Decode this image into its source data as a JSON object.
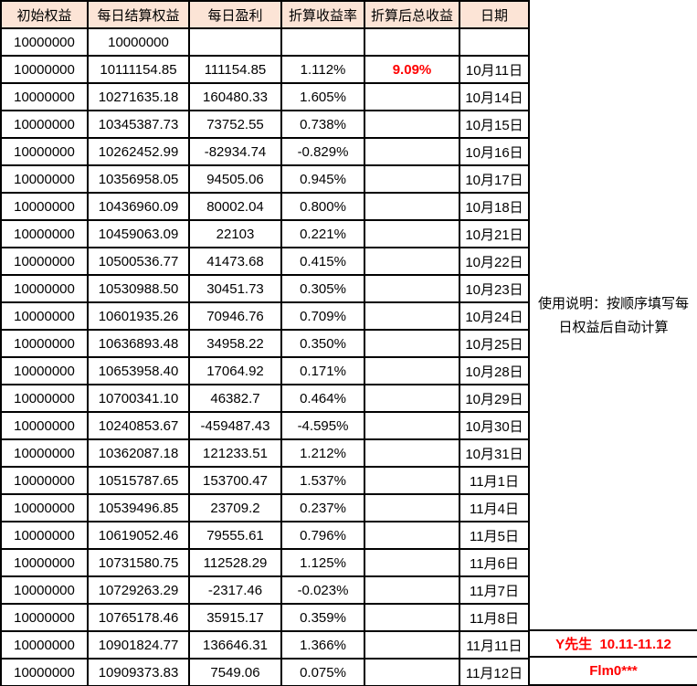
{
  "colors": {
    "header_bg": "#FCE4D6",
    "highlight_red": "#FF0000",
    "border": "#000000"
  },
  "table": {
    "headers": [
      "初始权益",
      "每日结算权益",
      "每日盈利",
      "折算收益率",
      "折算后总收益",
      "日期"
    ],
    "highlight": {
      "row": 1,
      "col": 4
    },
    "rows": [
      [
        "10000000",
        "10000000",
        "",
        "",
        "",
        ""
      ],
      [
        "10000000",
        "10111154.85",
        "111154.85",
        "1.112%",
        "9.09%",
        "10月11日"
      ],
      [
        "10000000",
        "10271635.18",
        "160480.33",
        "1.605%",
        "",
        "10月14日"
      ],
      [
        "10000000",
        "10345387.73",
        "73752.55",
        "0.738%",
        "",
        "10月15日"
      ],
      [
        "10000000",
        "10262452.99",
        "-82934.74",
        "-0.829%",
        "",
        "10月16日"
      ],
      [
        "10000000",
        "10356958.05",
        "94505.06",
        "0.945%",
        "",
        "10月17日"
      ],
      [
        "10000000",
        "10436960.09",
        "80002.04",
        "0.800%",
        "",
        "10月18日"
      ],
      [
        "10000000",
        "10459063.09",
        "22103",
        "0.221%",
        "",
        "10月21日"
      ],
      [
        "10000000",
        "10500536.77",
        "41473.68",
        "0.415%",
        "",
        "10月22日"
      ],
      [
        "10000000",
        "10530988.50",
        "30451.73",
        "0.305%",
        "",
        "10月23日"
      ],
      [
        "10000000",
        "10601935.26",
        "70946.76",
        "0.709%",
        "",
        "10月24日"
      ],
      [
        "10000000",
        "10636893.48",
        "34958.22",
        "0.350%",
        "",
        "10月25日"
      ],
      [
        "10000000",
        "10653958.40",
        "17064.92",
        "0.171%",
        "",
        "10月28日"
      ],
      [
        "10000000",
        "10700341.10",
        "46382.7",
        "0.464%",
        "",
        "10月29日"
      ],
      [
        "10000000",
        "10240853.67",
        "-459487.43",
        "-4.595%",
        "",
        "10月30日"
      ],
      [
        "10000000",
        "10362087.18",
        "121233.51",
        "1.212%",
        "",
        "10月31日"
      ],
      [
        "10000000",
        "10515787.65",
        "153700.47",
        "1.537%",
        "",
        "11月1日"
      ],
      [
        "10000000",
        "10539496.85",
        "23709.2",
        "0.237%",
        "",
        "11月4日"
      ],
      [
        "10000000",
        "10619052.46",
        "79555.61",
        "0.796%",
        "",
        "11月5日"
      ],
      [
        "10000000",
        "10731580.75",
        "112528.29",
        "1.125%",
        "",
        "11月6日"
      ],
      [
        "10000000",
        "10729263.29",
        "-2317.46",
        "-0.023%",
        "",
        "11月7日"
      ],
      [
        "10000000",
        "10765178.46",
        "35915.17",
        "0.359%",
        "",
        "11月8日"
      ],
      [
        "10000000",
        "10901824.77",
        "136646.31",
        "1.366%",
        "",
        "11月11日"
      ],
      [
        "10000000",
        "10909373.83",
        "7549.06",
        "0.075%",
        "",
        "11月12日"
      ]
    ]
  },
  "side_panel": {
    "instructions": "使用说明：按顺序填写每日权益后自动计算",
    "signature_line1": "Y先生  10.11-11.12",
    "signature_line2": "Flm0***"
  }
}
